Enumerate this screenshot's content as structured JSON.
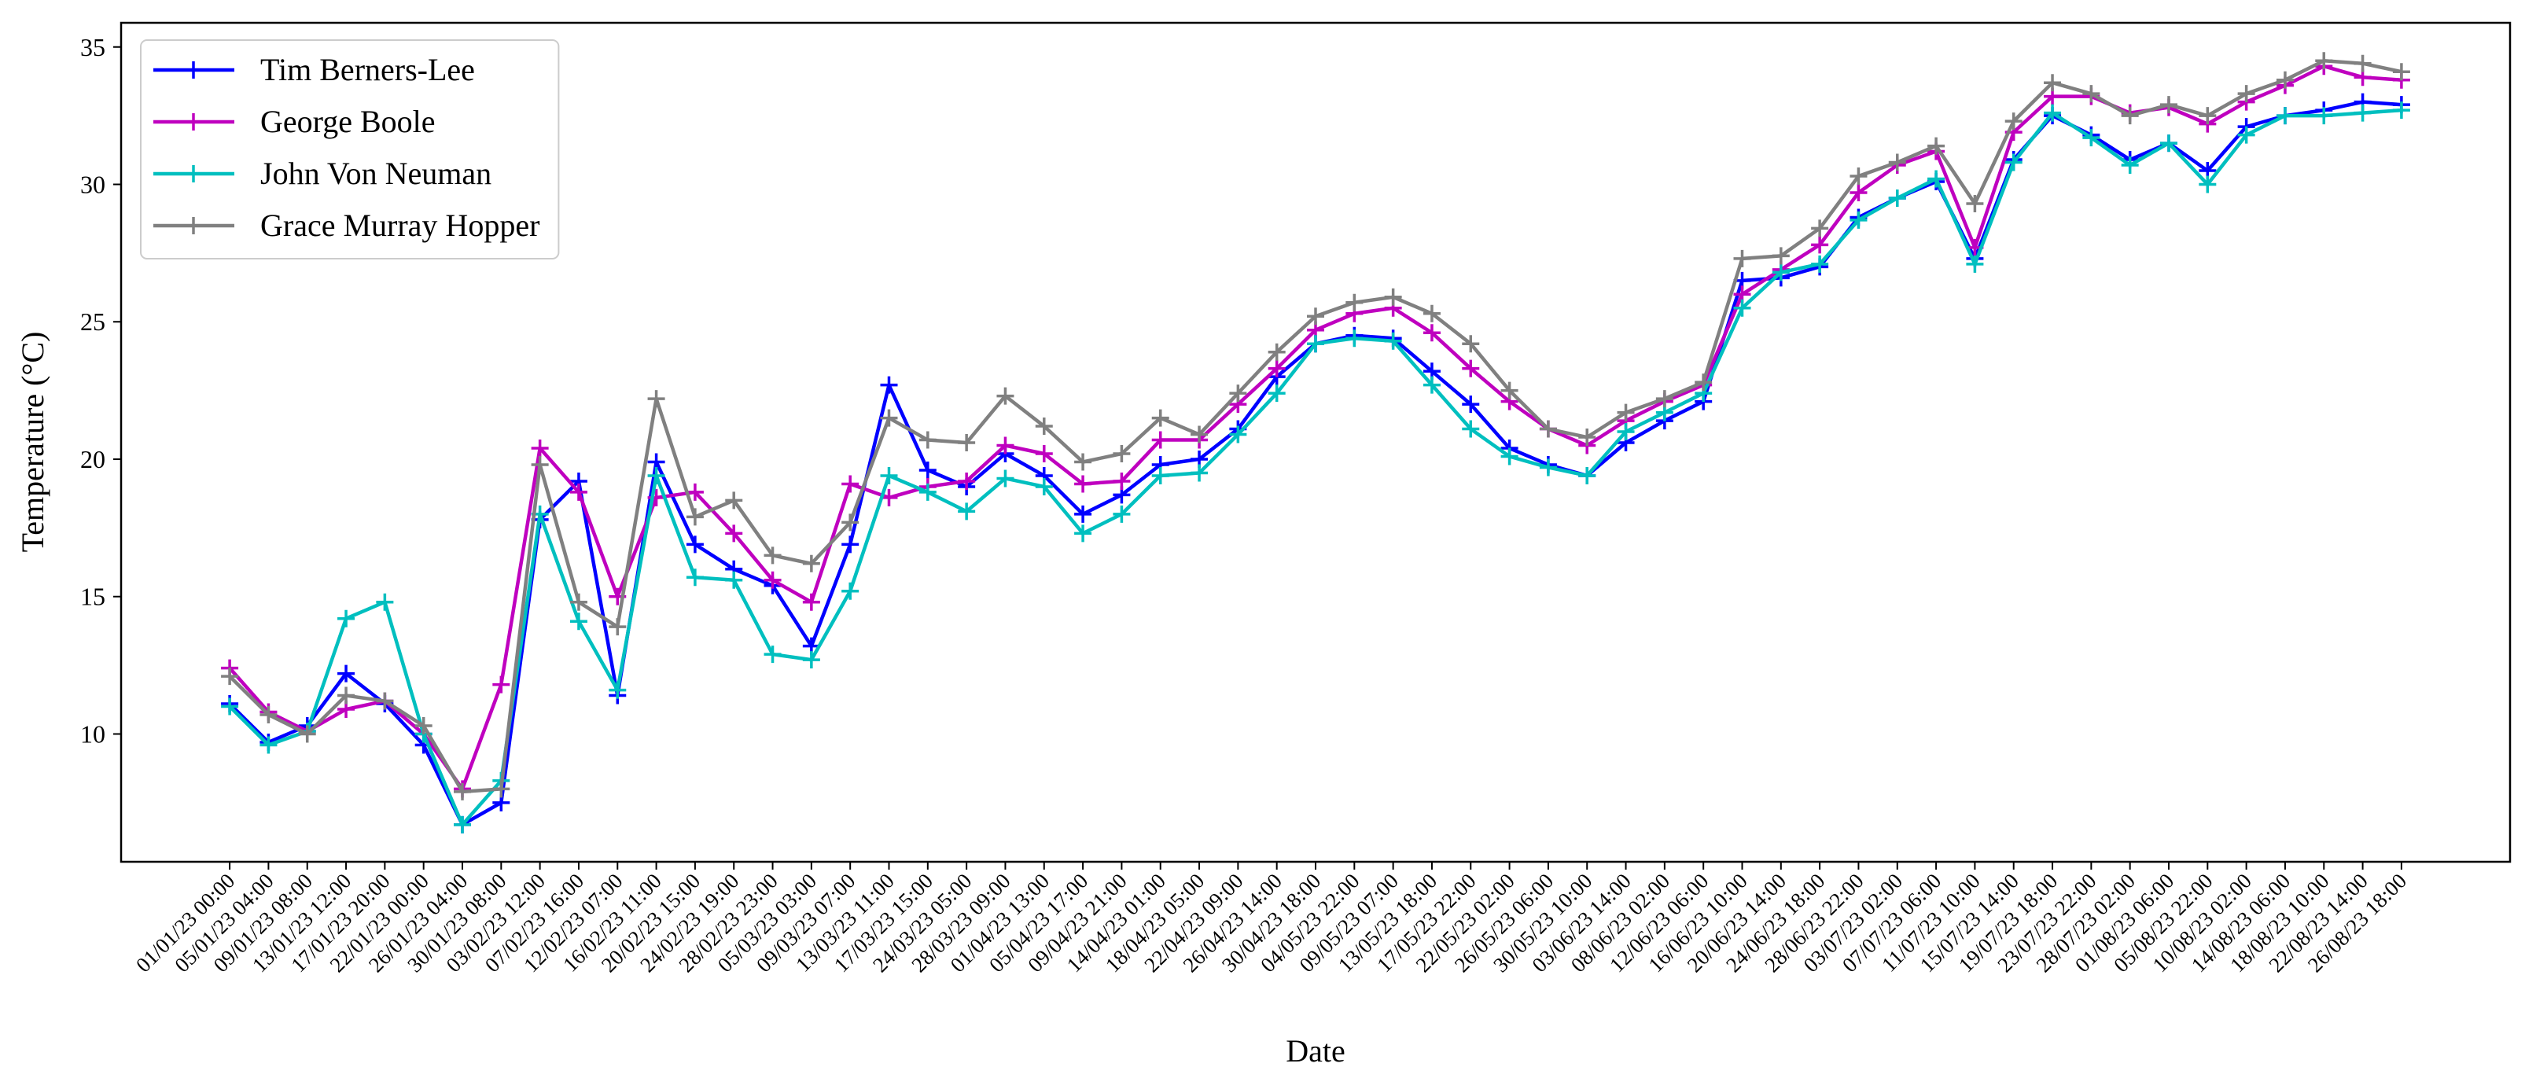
{
  "chart_data": {
    "type": "line",
    "xlabel": "Date",
    "ylabel": "Temperature (°C)",
    "categories": [
      "01/01/23 00:00",
      "05/01/23 04:00",
      "09/01/23 08:00",
      "13/01/23 12:00",
      "17/01/23 20:00",
      "22/01/23 00:00",
      "26/01/23 04:00",
      "30/01/23 08:00",
      "03/02/23 12:00",
      "07/02/23 16:00",
      "12/02/23 07:00",
      "16/02/23 11:00",
      "20/02/23 15:00",
      "24/02/23 19:00",
      "28/02/23 23:00",
      "05/03/23 03:00",
      "09/03/23 07:00",
      "13/03/23 11:00",
      "17/03/23 15:00",
      "24/03/23 05:00",
      "28/03/23 09:00",
      "01/04/23 13:00",
      "05/04/23 17:00",
      "09/04/23 21:00",
      "14/04/23 01:00",
      "18/04/23 05:00",
      "22/04/23 09:00",
      "26/04/23 14:00",
      "30/04/23 18:00",
      "04/05/23 22:00",
      "09/05/23 07:00",
      "13/05/23 18:00",
      "17/05/23 22:00",
      "22/05/23 02:00",
      "26/05/23 06:00",
      "30/05/23 10:00",
      "03/06/23 14:00",
      "08/06/23 02:00",
      "12/06/23 06:00",
      "16/06/23 10:00",
      "20/06/23 14:00",
      "24/06/23 18:00",
      "28/06/23 22:00",
      "03/07/23 02:00",
      "07/07/23 06:00",
      "11/07/23 10:00",
      "15/07/23 14:00",
      "19/07/23 18:00",
      "23/07/23 22:00",
      "28/07/23 02:00",
      "01/08/23 06:00",
      "05/08/23 22:00",
      "10/08/23 02:00",
      "14/08/23 06:00",
      "18/08/23 10:00",
      "22/08/23 14:00",
      "26/08/23 18:00"
    ],
    "series": [
      {
        "name": "Tim Berners-Lee",
        "color": "#0000ff",
        "values": [
          11.1,
          9.7,
          10.3,
          12.2,
          11.1,
          9.6,
          6.7,
          7.5,
          17.8,
          19.2,
          11.4,
          19.9,
          16.9,
          16.0,
          15.4,
          13.2,
          16.9,
          22.7,
          19.6,
          19.0,
          20.2,
          19.4,
          18.0,
          18.7,
          19.8,
          20.0,
          21.1,
          23.0,
          24.2,
          24.5,
          24.4,
          23.2,
          22.0,
          20.4,
          19.8,
          19.4,
          20.6,
          21.4,
          22.1,
          26.5,
          26.6,
          27.0,
          28.8,
          29.5,
          30.1,
          27.3,
          30.9,
          32.5,
          31.8,
          30.9,
          31.5,
          30.5,
          32.1,
          32.5,
          32.7,
          33.0,
          32.9
        ]
      },
      {
        "name": "George Boole",
        "color": "#bf00bf",
        "values": [
          12.4,
          10.8,
          10.1,
          10.9,
          11.2,
          10.0,
          8.0,
          11.8,
          20.4,
          18.8,
          15.0,
          18.6,
          18.8,
          17.3,
          15.6,
          14.8,
          19.1,
          18.6,
          19.0,
          19.2,
          20.5,
          20.2,
          19.1,
          19.2,
          20.7,
          20.7,
          22.0,
          23.3,
          24.7,
          25.3,
          25.5,
          24.6,
          23.3,
          22.1,
          21.1,
          20.5,
          21.4,
          22.1,
          22.7,
          26.0,
          26.9,
          27.8,
          29.7,
          30.7,
          31.2,
          27.7,
          31.9,
          33.2,
          33.2,
          32.6,
          32.8,
          32.2,
          33.0,
          33.6,
          34.3,
          33.9,
          33.8
        ]
      },
      {
        "name": "John Von Neuman",
        "color": "#00bfbf",
        "values": [
          11.0,
          9.6,
          10.1,
          14.2,
          14.8,
          10.0,
          6.7,
          8.3,
          18.0,
          14.1,
          11.6,
          19.4,
          15.7,
          15.6,
          12.9,
          12.7,
          15.2,
          19.4,
          18.8,
          18.1,
          19.3,
          19.0,
          17.3,
          18.0,
          19.4,
          19.5,
          20.9,
          22.4,
          24.2,
          24.4,
          24.3,
          22.7,
          21.1,
          20.1,
          19.7,
          19.4,
          21.0,
          21.7,
          22.4,
          25.5,
          26.8,
          27.1,
          28.7,
          29.5,
          30.2,
          27.1,
          30.8,
          32.6,
          31.7,
          30.7,
          31.5,
          30.0,
          31.8,
          32.5,
          32.5,
          32.6,
          32.7
        ]
      },
      {
        "name": "Grace Murray Hopper",
        "color": "#808080",
        "values": [
          12.1,
          10.7,
          10.0,
          11.4,
          11.2,
          10.3,
          7.9,
          8.0,
          19.8,
          14.8,
          13.9,
          22.2,
          17.9,
          18.5,
          16.5,
          16.2,
          17.7,
          21.5,
          20.7,
          20.6,
          22.3,
          21.2,
          19.9,
          20.2,
          21.5,
          20.9,
          22.4,
          23.9,
          25.2,
          25.7,
          25.9,
          25.3,
          24.2,
          22.5,
          21.1,
          20.8,
          21.7,
          22.2,
          22.8,
          27.3,
          27.4,
          28.4,
          30.3,
          30.8,
          31.4,
          29.3,
          32.3,
          33.7,
          33.3,
          32.5,
          32.9,
          32.5,
          33.3,
          33.8,
          34.5,
          34.4,
          34.1
        ]
      }
    ],
    "ylim": [
      5.35,
      35.88
    ],
    "yticks": [
      10,
      15,
      20,
      25,
      30,
      35
    ],
    "legend": "upper left"
  }
}
